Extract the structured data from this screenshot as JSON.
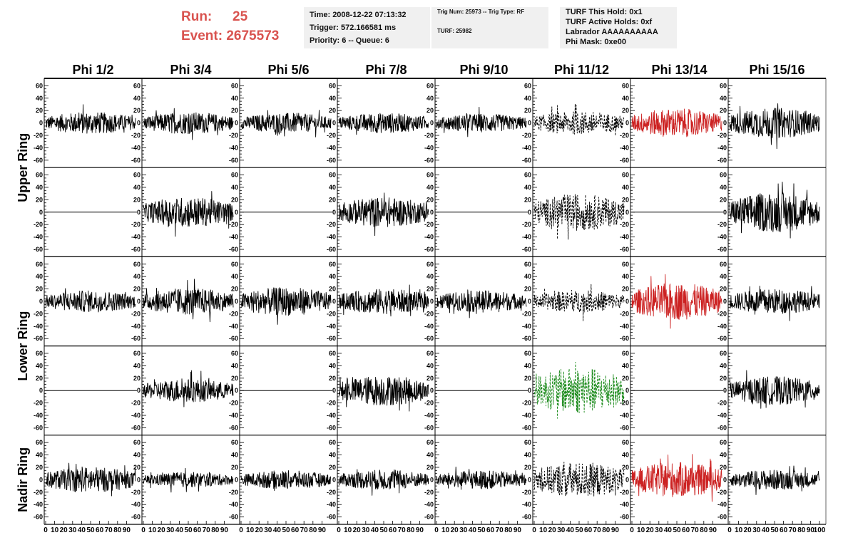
{
  "run_info": {
    "run_label": "Run:",
    "run_value": "25",
    "event_label": "Event:",
    "event_value": "2675573"
  },
  "info_box_1": {
    "time": "Time: 2008-12-22 07:13:32",
    "trigger": "Trigger: 572.166581 ms",
    "priority": "Priority: 6 -- Queue: 6"
  },
  "info_box_2": {
    "trig": "Trig Num: 25973 -- Trig Type: RF",
    "turf": "TURF: 25982"
  },
  "info_box_3": {
    "hold": "TURF This Hold: 0x1",
    "active": "TURF Active Holds: 0xf",
    "labrador": "Labrador AAAAAAAAAA",
    "phi_mask": "Phi Mask: 0xe00"
  },
  "colors": {
    "title_red": "#d9534f",
    "trace_black": "#000000",
    "trace_red": "#cc2222",
    "trace_green": "#1a8a1a",
    "info_bg": "#f0f0f0"
  },
  "chart_data": {
    "type": "line",
    "column_titles": [
      "Phi 1/2",
      "Phi 3/4",
      "Phi 5/6",
      "Phi 7/8",
      "Phi 9/10",
      "Phi 11/12",
      "Phi 13/14",
      "Phi 15/16"
    ],
    "ring_titles": [
      "Upper Ring",
      "Lower Ring",
      "Nadir Ring"
    ],
    "ylim": [
      -65,
      65
    ],
    "xlim": [
      0,
      100
    ],
    "y_ticks": [
      -60,
      -40,
      -20,
      0,
      20,
      40,
      60
    ],
    "x_tick_labels": [
      "0",
      "10",
      "20",
      "30",
      "40",
      "50",
      "60",
      "70",
      "80",
      "90",
      "100"
    ],
    "approx_samples_per_trace": 260,
    "rows": [
      {
        "ring": "Upper Ring",
        "panels": [
          {
            "style": "solid",
            "color": "black",
            "amplitude": 13
          },
          {
            "style": "solid",
            "color": "black",
            "amplitude": 13
          },
          {
            "style": "solid",
            "color": "black",
            "amplitude": 12
          },
          {
            "style": "solid",
            "color": "black",
            "amplitude": 12
          },
          {
            "style": "solid",
            "color": "black",
            "amplitude": 11
          },
          {
            "style": "dashed",
            "color": "black",
            "amplitude": 14
          },
          {
            "style": "solid",
            "color": "red",
            "amplitude": 17
          },
          {
            "style": "solid",
            "color": "black",
            "amplitude": 18
          }
        ]
      },
      {
        "ring": "Upper Ring",
        "panels": [
          {
            "style": "flat",
            "color": "black",
            "amplitude": 0
          },
          {
            "style": "solid",
            "color": "black",
            "amplitude": 18
          },
          {
            "style": "flat",
            "color": "black",
            "amplitude": 0
          },
          {
            "style": "solid",
            "color": "black",
            "amplitude": 18
          },
          {
            "style": "flat",
            "color": "black",
            "amplitude": 0
          },
          {
            "style": "dashed",
            "color": "black",
            "amplitude": 22
          },
          {
            "style": "flat",
            "color": "black",
            "amplitude": 0
          },
          {
            "style": "solid",
            "color": "black",
            "amplitude": 24
          }
        ]
      },
      {
        "ring": "Lower Ring",
        "panels": [
          {
            "style": "solid",
            "color": "black",
            "amplitude": 13
          },
          {
            "style": "solid",
            "color": "black",
            "amplitude": 16
          },
          {
            "style": "solid",
            "color": "black",
            "amplitude": 17
          },
          {
            "style": "solid",
            "color": "black",
            "amplitude": 15
          },
          {
            "style": "solid",
            "color": "black",
            "amplitude": 13
          },
          {
            "style": "dashed",
            "color": "black",
            "amplitude": 13
          },
          {
            "style": "solid",
            "color": "red",
            "amplitude": 22
          },
          {
            "style": "solid",
            "color": "black",
            "amplitude": 15
          }
        ]
      },
      {
        "ring": "Lower Ring",
        "panels": [
          {
            "style": "flat",
            "color": "black",
            "amplitude": 0
          },
          {
            "style": "solid",
            "color": "black",
            "amplitude": 14
          },
          {
            "style": "flat",
            "color": "black",
            "amplitude": 0
          },
          {
            "style": "solid",
            "color": "black",
            "amplitude": 18
          },
          {
            "style": "flat",
            "color": "black",
            "amplitude": 0
          },
          {
            "style": "dashed",
            "color": "green",
            "amplitude": 28
          },
          {
            "style": "flat",
            "color": "black",
            "amplitude": 0
          },
          {
            "style": "solid",
            "color": "black",
            "amplitude": 17
          }
        ]
      },
      {
        "ring": "Nadir Ring",
        "panels": [
          {
            "style": "solid",
            "color": "black",
            "amplitude": 15
          },
          {
            "style": "solid",
            "color": "black",
            "amplitude": 9
          },
          {
            "style": "solid",
            "color": "black",
            "amplitude": 11
          },
          {
            "style": "solid",
            "color": "black",
            "amplitude": 12
          },
          {
            "style": "solid",
            "color": "black",
            "amplitude": 11
          },
          {
            "style": "dashed",
            "color": "black",
            "amplitude": 21
          },
          {
            "style": "solid",
            "color": "red",
            "amplitude": 21
          },
          {
            "style": "solid",
            "color": "black",
            "amplitude": 12
          }
        ]
      }
    ]
  }
}
